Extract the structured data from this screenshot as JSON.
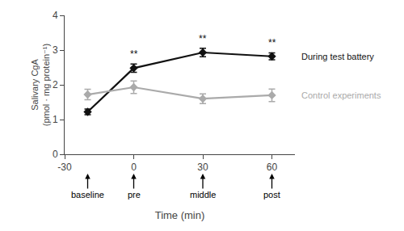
{
  "chart_data": {
    "type": "line",
    "x": [
      -20,
      0,
      30,
      60
    ],
    "series": [
      {
        "name": "During test battery",
        "color": "#111111",
        "marker": "diamond",
        "values": [
          1.22,
          2.48,
          2.93,
          2.82
        ],
        "errors": [
          0.08,
          0.12,
          0.12,
          0.1
        ]
      },
      {
        "name": "Control experiments",
        "color": "#aaaaaa",
        "marker": "diamond",
        "values": [
          1.72,
          1.93,
          1.6,
          1.7
        ],
        "errors": [
          0.15,
          0.18,
          0.14,
          0.18
        ]
      }
    ],
    "xlabel": "Time (min)",
    "ylabel": "Salivary CgA\n(pmol · mg protein⁻¹)",
    "xlim": [
      -30,
      70
    ],
    "ylim": [
      0,
      4
    ],
    "xticks": [
      -30,
      0,
      30,
      60
    ],
    "yticks": [
      0,
      1,
      2,
      3,
      4
    ],
    "grid": false,
    "annotations": [
      {
        "text": "**",
        "x": 0,
        "series": "During test battery"
      },
      {
        "text": "**",
        "x": 30,
        "series": "During test battery"
      },
      {
        "text": "**",
        "x": 60,
        "series": "During test battery"
      },
      {
        "text": "baseline",
        "x": -20
      },
      {
        "text": "pre",
        "x": 0
      },
      {
        "text": "middle",
        "x": 30
      },
      {
        "text": "post",
        "x": 60
      }
    ]
  }
}
